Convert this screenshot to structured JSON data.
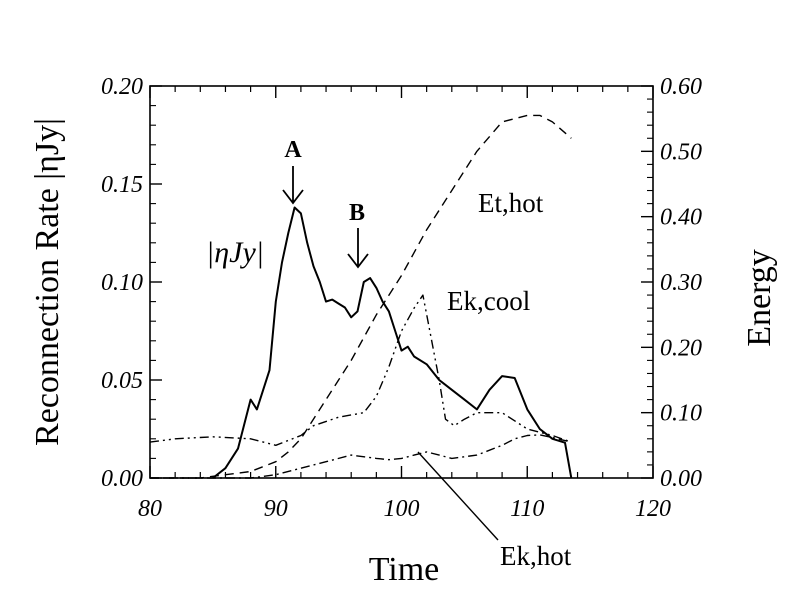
{
  "chart_data": {
    "type": "line",
    "xlabel": "Time",
    "ylabel_left": "Reconnection Rate |ηJy|",
    "ylabel_right": "Energy",
    "xlim": [
      80,
      120
    ],
    "ylim_left": [
      0,
      0.2
    ],
    "ylim_right": [
      0,
      0.6
    ],
    "x_ticks": [
      "80",
      "90",
      "100",
      "110",
      "120"
    ],
    "y_ticks_left": [
      "0.00",
      "0.05",
      "0.10",
      "0.15",
      "0.20"
    ],
    "y_ticks_right": [
      "0.00",
      "0.10",
      "0.20",
      "0.30",
      "0.40",
      "0.50",
      "0.60"
    ],
    "grid": false,
    "series": [
      {
        "name": "|ηJy|",
        "axis": "left",
        "style": "solid",
        "x": [
          85,
          86,
          87,
          88,
          88.5,
          89,
          89.5,
          90,
          90.5,
          91,
          91.5,
          92,
          92.5,
          93,
          93.5,
          94,
          94.5,
          95,
          95.5,
          96,
          96.5,
          97,
          97.5,
          98,
          98.5,
          99,
          99.5,
          100,
          100.5,
          101,
          102,
          103,
          104,
          105,
          106,
          107,
          108,
          109,
          110,
          111,
          112,
          113,
          113.5
        ],
        "values": [
          0.0,
          0.005,
          0.015,
          0.04,
          0.035,
          0.045,
          0.055,
          0.09,
          0.11,
          0.125,
          0.138,
          0.135,
          0.12,
          0.108,
          0.1,
          0.09,
          0.091,
          0.089,
          0.087,
          0.082,
          0.085,
          0.1,
          0.102,
          0.097,
          0.09,
          0.085,
          0.075,
          0.065,
          0.067,
          0.062,
          0.058,
          0.05,
          0.045,
          0.04,
          0.035,
          0.045,
          0.052,
          0.051,
          0.035,
          0.025,
          0.02,
          0.018,
          0.0
        ]
      },
      {
        "name": "Et,hot",
        "axis": "right",
        "style": "dashed",
        "x": [
          80,
          84,
          86,
          88,
          90,
          91,
          92,
          94,
          96,
          98,
          100,
          102,
          104,
          106,
          108,
          110,
          111,
          112,
          113.5
        ],
        "values": [
          0.0,
          0.0,
          0.005,
          0.01,
          0.025,
          0.04,
          0.06,
          0.12,
          0.18,
          0.25,
          0.31,
          0.38,
          0.44,
          0.5,
          0.545,
          0.555,
          0.555,
          0.545,
          0.52
        ]
      },
      {
        "name": "Ek,cool",
        "axis": "right",
        "style": "dash-dot-dot",
        "x": [
          80,
          82,
          85,
          88,
          90,
          92,
          93,
          95,
          97,
          98,
          99,
          100,
          101,
          101.7,
          102,
          103,
          103.5,
          104.2,
          105,
          106,
          108,
          110,
          112,
          113.5
        ],
        "values": [
          0.055,
          0.06,
          0.063,
          0.06,
          0.05,
          0.065,
          0.08,
          0.093,
          0.1,
          0.125,
          0.17,
          0.225,
          0.26,
          0.28,
          0.25,
          0.15,
          0.09,
          0.08,
          0.09,
          0.1,
          0.1,
          0.075,
          0.065,
          0.055
        ]
      },
      {
        "name": "Ek,hot",
        "axis": "right",
        "style": "dash-dot",
        "x": [
          80,
          84,
          86,
          88,
          90,
          92,
          94,
          96,
          98,
          99,
          100,
          101,
          102,
          103,
          104,
          106,
          108,
          109,
          110,
          111,
          112,
          113.5
        ],
        "values": [
          0.0,
          0.0,
          0.0,
          0.0,
          0.005,
          0.015,
          0.025,
          0.035,
          0.03,
          0.028,
          0.03,
          0.035,
          0.04,
          0.035,
          0.03,
          0.035,
          0.05,
          0.06,
          0.065,
          0.066,
          0.062,
          0.055
        ]
      }
    ],
    "annotations": [
      {
        "text": "A",
        "x": 91.4,
        "y": 0.138
      },
      {
        "text": "B",
        "x": 96.4,
        "y": 0.103
      }
    ],
    "series_labels": {
      "eta_j": "|ηJy|",
      "et_hot": "Et,hot",
      "ek_cool": "Ek,cool",
      "ek_hot": "Ek,hot"
    }
  }
}
